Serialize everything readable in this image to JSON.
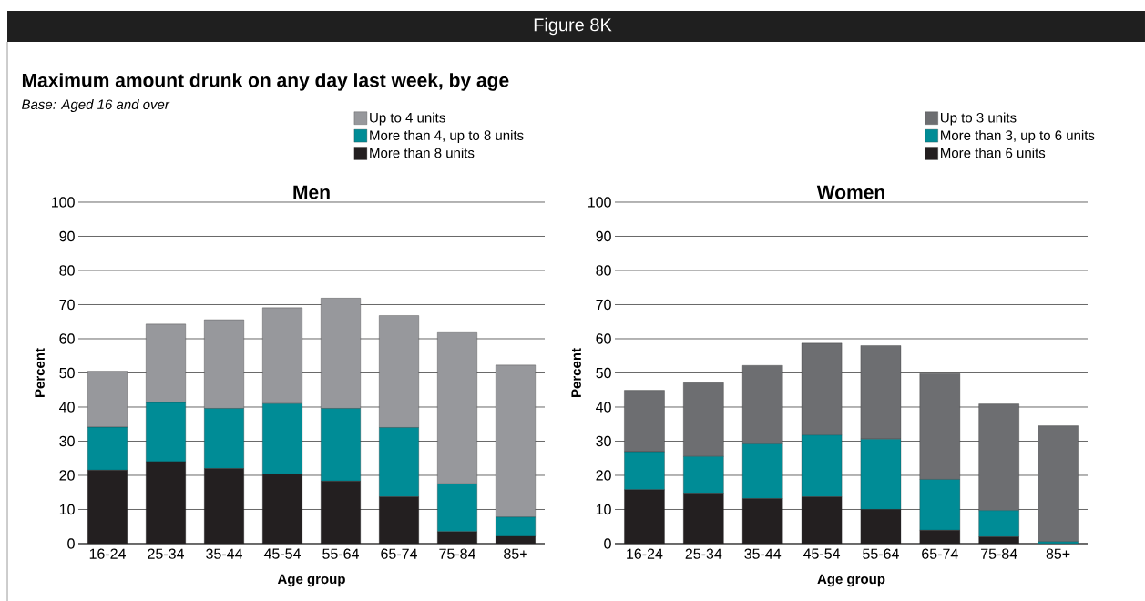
{
  "chart_data": [
    {
      "type": "bar",
      "stacked": true,
      "title": "Men",
      "xlabel": "Age group",
      "ylabel": "Percent",
      "annotations": [
        "Figure 8K",
        "Maximum amount drunk on any day last week, by age",
        "Base: Aged 16 and over"
      ],
      "categories": [
        "16-24",
        "25-34",
        "35-44",
        "45-54",
        "55-64",
        "65-74",
        "75-84",
        "85+"
      ],
      "series": [
        {
          "name": "More than 8 units",
          "color": "#231f20",
          "values": [
            21.5,
            24.0,
            22.0,
            20.4,
            18.3,
            13.7,
            3.5,
            2.1
          ]
        },
        {
          "name": "More than 4, up to 8 units",
          "color": "#008c96",
          "values": [
            12.6,
            17.3,
            17.6,
            20.6,
            21.3,
            20.3,
            14.0,
            5.7
          ]
        },
        {
          "name": "Up to 4 units",
          "color": "#97989c",
          "values": [
            16.4,
            23.0,
            26.0,
            28.1,
            32.3,
            32.8,
            44.3,
            44.5
          ]
        }
      ],
      "ylim": [
        0,
        100
      ],
      "yticks": [
        0,
        10,
        20,
        30,
        40,
        50,
        60,
        70,
        80,
        90,
        100
      ],
      "grid": "y",
      "legend": "top"
    },
    {
      "type": "bar",
      "stacked": true,
      "title": "Women",
      "xlabel": "Age group",
      "ylabel": "Percent",
      "categories": [
        "16-24",
        "25-34",
        "35-44",
        "45-54",
        "55-64",
        "65-74",
        "75-84",
        "85+"
      ],
      "series": [
        {
          "name": "More than 6 units",
          "color": "#231f20",
          "values": [
            15.8,
            14.8,
            13.2,
            13.7,
            10.0,
            3.9,
            2.0,
            null
          ]
        },
        {
          "name": "More than 3, up to 6 units",
          "color": "#008c96",
          "values": [
            11.1,
            10.7,
            16.0,
            18.1,
            20.6,
            14.9,
            7.7,
            0.6
          ]
        },
        {
          "name": "Up to 3 units",
          "color": "#6d6e71",
          "values": [
            18.0,
            21.6,
            23.0,
            26.9,
            27.4,
            31.0,
            31.2,
            33.9
          ]
        }
      ],
      "ylim": [
        0,
        100
      ],
      "yticks": [
        0,
        10,
        20,
        30,
        40,
        50,
        60,
        70,
        80,
        90,
        100
      ],
      "grid": "y",
      "legend": "top"
    }
  ]
}
